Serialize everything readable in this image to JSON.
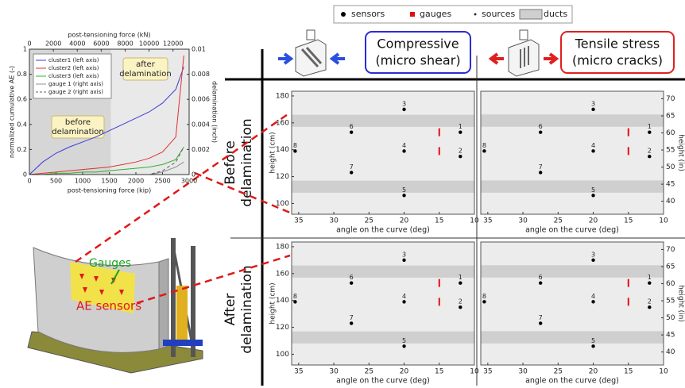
{
  "legend": {
    "items": [
      {
        "label": "sensors",
        "color": "#000000"
      },
      {
        "label": "gauges",
        "color": "#e01010"
      },
      {
        "label": "sources",
        "color": "#333333"
      },
      {
        "label": "ducts",
        "color": "#cfcfcf"
      }
    ]
  },
  "columns": [
    {
      "lines": [
        "Compressive",
        "(micro shear)"
      ],
      "color": "#2b2bd6"
    },
    {
      "lines": [
        "Tensile stress",
        "(micro cracks)"
      ],
      "color": "#e02020"
    }
  ],
  "rows": [
    {
      "lines": [
        "Before",
        "delamination"
      ]
    },
    {
      "lines": [
        "After",
        "delamination"
      ]
    }
  ],
  "photo": {
    "labels": [
      "Gauges",
      "AE sensors"
    ]
  },
  "chart_data": [
    {
      "type": "line",
      "xlabel": "post-tensioning force (kip)",
      "xlim": [
        0,
        3000
      ],
      "xticks": [
        0,
        500,
        1000,
        1500,
        2000,
        2500,
        3000
      ],
      "x2label": "post-tensioning force (kN)",
      "x2lim": [
        0,
        13345
      ],
      "x2ticks": [
        0,
        2000,
        4000,
        6000,
        8000,
        10000,
        12000
      ],
      "ylabel": "normalized cumulative AE (-)",
      "ylim": [
        0,
        1
      ],
      "yticks": [
        0,
        0.2,
        0.4,
        0.6,
        0.8,
        1
      ],
      "y2label": "delamination (inch)",
      "y2lim": [
        0,
        0.01
      ],
      "y2ticks": [
        0,
        0.002,
        0.004,
        0.006,
        0.008,
        0.01
      ],
      "regions": [
        {
          "lines": [
            "before",
            "delamination"
          ],
          "xrange": [
            0,
            1530
          ],
          "color": "#d6d6d6"
        },
        {
          "lines": [
            "after",
            "delamination"
          ],
          "xrange": [
            1530,
            3000
          ],
          "color": "#e9e9e9"
        }
      ],
      "x": [
        0,
        250,
        500,
        750,
        1000,
        1250,
        1500,
        1750,
        2000,
        2250,
        2500,
        2750,
        2900
      ],
      "series": [
        {
          "name": "cluster1 (left axis)",
          "color": "#3b3bd8",
          "values": [
            0,
            0.1,
            0.17,
            0.22,
            0.26,
            0.3,
            0.35,
            0.4,
            0.45,
            0.5,
            0.57,
            0.68,
            0.86
          ]
        },
        {
          "name": "cluster2 (left axis)",
          "color": "#e03030",
          "values": [
            0,
            0.01,
            0.02,
            0.03,
            0.04,
            0.05,
            0.06,
            0.08,
            0.1,
            0.13,
            0.18,
            0.3,
            0.95
          ]
        },
        {
          "name": "cluster3 (left axis)",
          "color": "#30b030",
          "values": [
            0,
            0,
            0.01,
            0.01,
            0.02,
            0.02,
            0.03,
            0.04,
            0.05,
            0.06,
            0.08,
            0.12,
            0.22
          ]
        },
        {
          "name": "gauge 1 (right axis)",
          "color": "#909090",
          "dash": "solid",
          "axis": "y2",
          "values": [
            0,
            0,
            0,
            0,
            0,
            0,
            0,
            0,
            0,
            0,
            0.0002,
            0.0006,
            0.001
          ]
        },
        {
          "name": "gauge 2 (right axis)",
          "color": "#606060",
          "dash": "dashed",
          "axis": "y2",
          "values": [
            0,
            0,
            0,
            0,
            0,
            0,
            0,
            0,
            0,
            0,
            0.0003,
            0.001,
            0.0022
          ]
        }
      ]
    },
    {
      "type": "scatter",
      "xlabel": "angle on the curve (deg)",
      "xlim": [
        36,
        10
      ],
      "xticks": [
        35,
        30,
        25,
        20,
        15,
        10
      ],
      "ylabel": "height (cm)",
      "yaxis": "left",
      "ylim": [
        92,
        183.5
      ],
      "yticks": [
        100,
        120,
        140,
        160,
        180
      ],
      "ducts": [
        [
          157,
          166
        ],
        [
          108,
          117
        ]
      ],
      "sensors": {
        "color": "#000000",
        "x": [
          12,
          12,
          20,
          20,
          20,
          27.5,
          27.5,
          35.5
        ],
        "y": [
          153,
          135,
          170,
          139,
          106,
          153,
          123,
          139
        ],
        "labels": [
          "1",
          "2",
          "3",
          "4",
          "5",
          "6",
          "7",
          "8"
        ]
      },
      "gauges": {
        "color": "#e01010",
        "x": [
          15,
          15
        ],
        "y": [
          153,
          139
        ]
      }
    },
    {
      "type": "scatter",
      "xlabel": "angle on the curve (deg)",
      "xlim": [
        36,
        10
      ],
      "xticks": [
        35,
        30,
        25,
        20,
        15,
        10
      ],
      "ylabel": "height (in)",
      "yaxis": "right",
      "ylim": [
        36.2,
        72.2
      ],
      "yticks": [
        40,
        45,
        50,
        55,
        60,
        65,
        70
      ],
      "ducts": [
        [
          61.8,
          65.4
        ],
        [
          42.5,
          46.1
        ]
      ],
      "sensors": {
        "color": "#000000",
        "x": [
          12,
          12,
          20,
          20,
          20,
          27.5,
          27.5,
          35.5
        ],
        "y": [
          60.2,
          53.1,
          66.9,
          54.7,
          41.7,
          60.2,
          48.4,
          54.7
        ],
        "labels": [
          "1",
          "2",
          "3",
          "4",
          "5",
          "6",
          "7",
          "8"
        ]
      },
      "gauges": {
        "color": "#e01010",
        "x": [
          15,
          15
        ],
        "y": [
          60.2,
          54.7
        ]
      }
    },
    {
      "type": "scatter",
      "xlabel": "angle on the curve (deg)",
      "xlim": [
        36,
        10
      ],
      "xticks": [
        35,
        30,
        25,
        20,
        15,
        10
      ],
      "ylabel": "height (cm)",
      "yaxis": "left",
      "ylim": [
        92,
        183.5
      ],
      "yticks": [
        100,
        120,
        140,
        160,
        180
      ],
      "ducts": [
        [
          157,
          166
        ],
        [
          108,
          117
        ]
      ],
      "sensors": {
        "color": "#000000",
        "x": [
          12,
          12,
          20,
          20,
          20,
          27.5,
          27.5,
          35.5
        ],
        "y": [
          153,
          135,
          170,
          139,
          106,
          153,
          123,
          139
        ],
        "labels": [
          "1",
          "2",
          "3",
          "4",
          "5",
          "6",
          "7",
          "8"
        ]
      },
      "gauges": {
        "color": "#e01010",
        "x": [
          15,
          15
        ],
        "y": [
          153,
          139
        ]
      }
    },
    {
      "type": "scatter",
      "xlabel": "angle on the curve (deg)",
      "xlim": [
        36,
        10
      ],
      "xticks": [
        35,
        30,
        25,
        20,
        15,
        10
      ],
      "ylabel": "height (in)",
      "yaxis": "right",
      "ylim": [
        36.2,
        72.2
      ],
      "yticks": [
        40,
        45,
        50,
        55,
        60,
        65,
        70
      ],
      "ducts": [
        [
          61.8,
          65.4
        ],
        [
          42.5,
          46.1
        ]
      ],
      "sensors": {
        "color": "#000000",
        "x": [
          12,
          12,
          20,
          20,
          20,
          27.5,
          27.5,
          35.5
        ],
        "y": [
          60.2,
          53.1,
          66.9,
          54.7,
          41.7,
          60.2,
          48.4,
          54.7
        ],
        "labels": [
          "1",
          "2",
          "3",
          "4",
          "5",
          "6",
          "7",
          "8"
        ]
      },
      "gauges": {
        "color": "#e01010",
        "x": [
          15,
          15
        ],
        "y": [
          60.2,
          54.7
        ]
      }
    }
  ]
}
